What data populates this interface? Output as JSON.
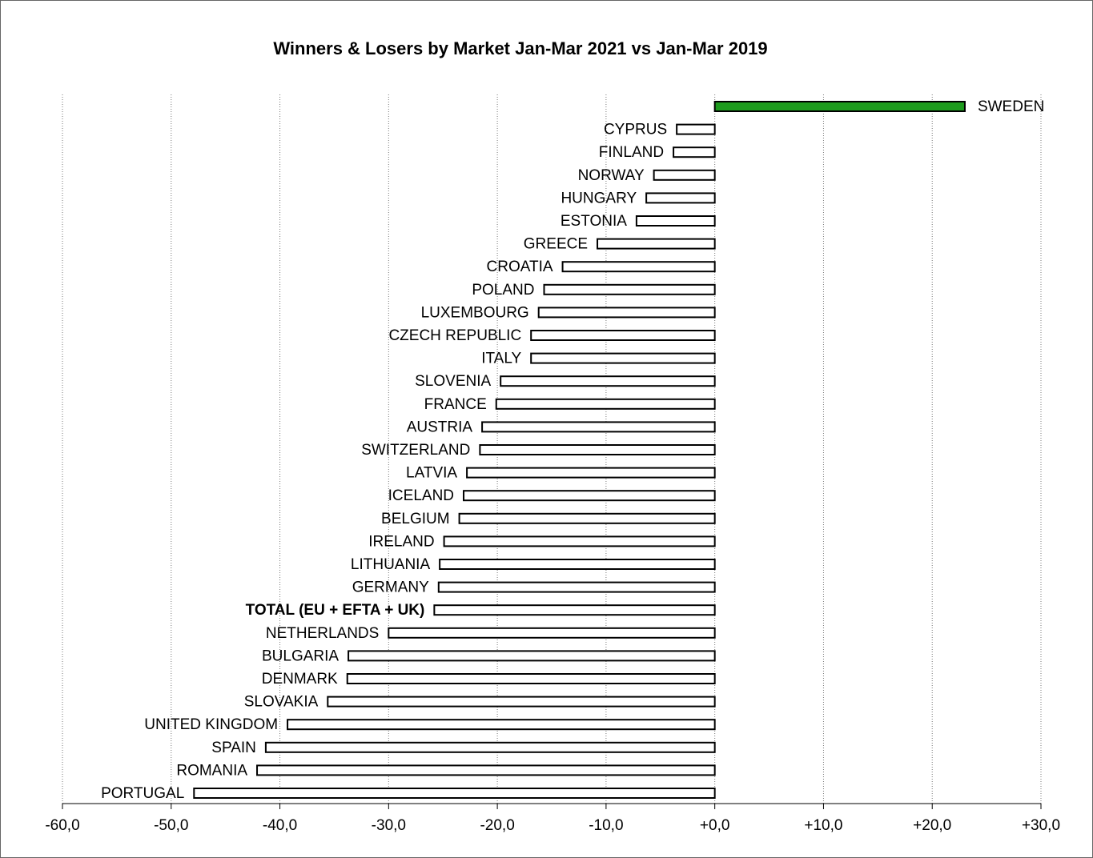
{
  "chart_data": {
    "type": "hbar",
    "title": "Winners & Losers by Market  Jan-Mar 2021 vs Jan-Mar 2019",
    "categories": [
      "SWEDEN",
      "CYPRUS",
      "FINLAND",
      "NORWAY",
      "HUNGARY",
      "ESTONIA",
      "GREECE",
      "CROATIA",
      "POLAND",
      "LUXEMBOURG",
      "CZECH REPUBLIC",
      "ITALY",
      "SLOVENIA",
      "FRANCE",
      "AUSTRIA",
      "SWITZERLAND",
      "LATVIA",
      "ICELAND",
      "BELGIUM",
      "IRELAND",
      "LITHUANIA",
      "GERMANY",
      "TOTAL (EU + EFTA + UK)",
      "NETHERLANDS",
      "BULGARIA",
      "DENMARK",
      "SLOVAKIA",
      "UNITED KINGDOM",
      "SPAIN",
      "ROMANIA",
      "PORTUGAL"
    ],
    "values": [
      23.0,
      -3.5,
      -3.8,
      -5.6,
      -6.3,
      -7.2,
      -10.8,
      -14.0,
      -15.7,
      -16.2,
      -16.9,
      -16.9,
      -19.7,
      -20.1,
      -21.4,
      -21.6,
      -22.8,
      -23.1,
      -23.5,
      -24.9,
      -25.3,
      -25.4,
      -25.8,
      -30.0,
      -33.7,
      -33.8,
      -35.6,
      -39.3,
      -41.3,
      -42.1,
      -47.9
    ],
    "highlight_category": "TOTAL (EU + EFTA + UK)",
    "color": "#ffffff",
    "positive_color": "#1e9b1e",
    "xlim": [
      -60,
      30
    ],
    "xticks": [
      {
        "value": -60,
        "label": "-60,0"
      },
      {
        "value": -50,
        "label": "-50,0"
      },
      {
        "value": -40,
        "label": "-40,0"
      },
      {
        "value": -30,
        "label": "-30,0"
      },
      {
        "value": -20,
        "label": "-20,0"
      },
      {
        "value": -10,
        "label": "-10,0"
      },
      {
        "value": 0,
        "label": "+0,0"
      },
      {
        "value": 10,
        "label": "+10,0"
      },
      {
        "value": 20,
        "label": "+20,0"
      },
      {
        "value": 30,
        "label": "+30,0"
      }
    ],
    "grid": true
  }
}
